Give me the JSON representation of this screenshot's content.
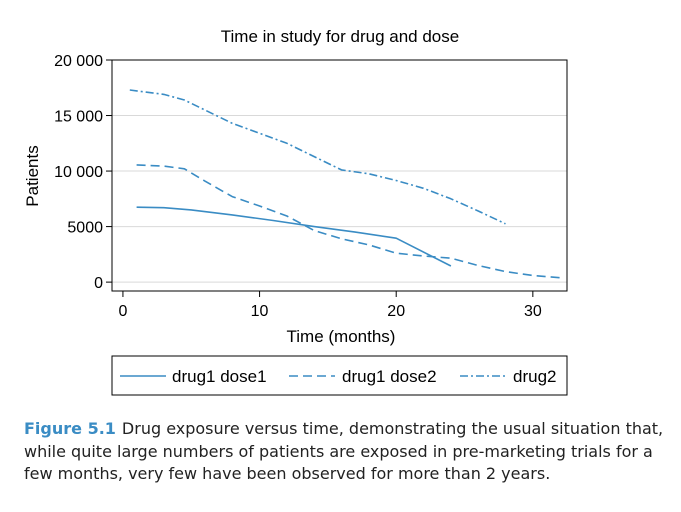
{
  "colors": {
    "series": "#3a8cc4",
    "grid": "#d9d9d9",
    "axis": "#000000",
    "caption_label": "#3a8cc4"
  },
  "chart_data": {
    "type": "line",
    "title": "Time in study for drug and dose",
    "xlabel": "Time (months)",
    "ylabel": "Patients",
    "xlim": [
      -0.8,
      32.5
    ],
    "ylim": [
      -800,
      20000
    ],
    "xticks": [
      0,
      10,
      20,
      30
    ],
    "xtick_labels": [
      "0",
      "10",
      "20",
      "30"
    ],
    "yticks": [
      0,
      5000,
      10000,
      15000,
      20000
    ],
    "ytick_labels": [
      "0",
      "5000",
      "10 000",
      "15 000",
      "20 000"
    ],
    "grid": "horizontal",
    "legend_position": "bottom",
    "series": [
      {
        "name": "drug1 dose1",
        "dash": "solid",
        "x": [
          1,
          3,
          5,
          8,
          11,
          14,
          17,
          20,
          24
        ],
        "y": [
          6750,
          6700,
          6500,
          6050,
          5550,
          5000,
          4500,
          3950,
          1450
        ]
      },
      {
        "name": "drug1 dose2",
        "dash": "dashed",
        "x": [
          1,
          3,
          4.5,
          6,
          8,
          10,
          12,
          14,
          16,
          18,
          20,
          22,
          24,
          26,
          28,
          30,
          32
        ],
        "y": [
          10550,
          10450,
          10200,
          9100,
          7700,
          6850,
          5950,
          4650,
          3900,
          3350,
          2600,
          2350,
          2150,
          1500,
          950,
          600,
          400
        ]
      },
      {
        "name": "drug2",
        "dash": "dashdot",
        "x": [
          0.5,
          3,
          4.5,
          6,
          8,
          10,
          12,
          14,
          16,
          18,
          20,
          22,
          24,
          26,
          28
        ],
        "y": [
          17300,
          16900,
          16400,
          15500,
          14300,
          13400,
          12500,
          11300,
          10100,
          9750,
          9150,
          8450,
          7500,
          6400,
          5250
        ]
      }
    ]
  },
  "caption": {
    "label": "Figure 5.1",
    "text": "Drug exposure versus time, demonstrating the usual situation that, while quite large numbers of patients are exposed in pre-marketing trials for a few months, very few have been observed for more than 2 years."
  }
}
